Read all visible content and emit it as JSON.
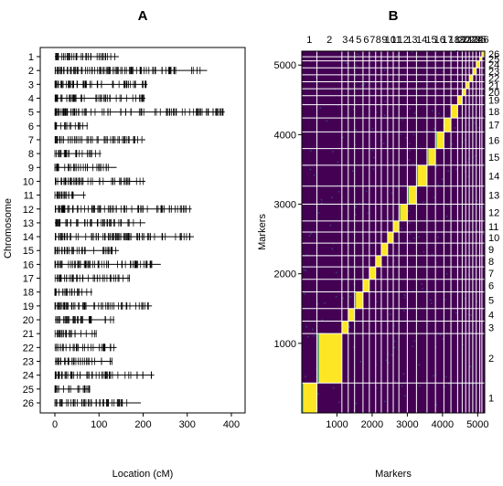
{
  "colors": {
    "heat_low": "#440154",
    "heat_mid": "#21908c",
    "heat_high": "#fde725",
    "grid": "#ffffff"
  },
  "chart_data": [
    {
      "panel": "A",
      "type": "scatter",
      "title": "A",
      "xlabel": "Location (cM)",
      "ylabel": "Chromosome",
      "xlim": [
        0,
        400
      ],
      "x_ticks": [
        0,
        100,
        200,
        300,
        400
      ],
      "chromosomes": [
        {
          "label": "1",
          "length": 145
        },
        {
          "label": "2",
          "length": 345
        },
        {
          "label": "3",
          "length": 210
        },
        {
          "label": "4",
          "length": 205
        },
        {
          "label": "5",
          "length": 385
        },
        {
          "label": "6",
          "length": 75
        },
        {
          "label": "7",
          "length": 205
        },
        {
          "label": "8",
          "length": 105
        },
        {
          "label": "9",
          "length": 140
        },
        {
          "label": "10",
          "length": 205
        },
        {
          "label": "11",
          "length": 70
        },
        {
          "label": "12",
          "length": 310
        },
        {
          "label": "13",
          "length": 205
        },
        {
          "label": "14",
          "length": 315
        },
        {
          "label": "15",
          "length": 145
        },
        {
          "label": "16",
          "length": 240
        },
        {
          "label": "17",
          "length": 170
        },
        {
          "label": "18",
          "length": 85
        },
        {
          "label": "19",
          "length": 220
        },
        {
          "label": "20",
          "length": 135
        },
        {
          "label": "21",
          "length": 95
        },
        {
          "label": "22",
          "length": 140
        },
        {
          "label": "23",
          "length": 130
        },
        {
          "label": "24",
          "length": 225
        },
        {
          "label": "25",
          "length": 80
        },
        {
          "label": "26",
          "length": 195
        }
      ]
    },
    {
      "panel": "B",
      "type": "heatmap",
      "title": "B",
      "xlabel": "Markers",
      "ylabel": "Markers",
      "lim": [
        0,
        5200
      ],
      "x_ticks": [
        1000,
        2000,
        3000,
        4000,
        5000
      ],
      "y_ticks": [
        1000,
        2000,
        3000,
        4000,
        5000
      ],
      "top_labels": [
        "1",
        "2",
        "3",
        "4",
        "5",
        "6",
        "7",
        "8",
        "9",
        "10",
        "11",
        "12",
        "13",
        "14",
        "15",
        "16",
        "17",
        "18",
        "19",
        "20",
        "21",
        "22",
        "23",
        "24",
        "25",
        "26"
      ],
      "right_labels": [
        "1",
        "2",
        "3",
        "4",
        "5",
        "6",
        "7",
        "8",
        "9",
        "10",
        "11",
        "12",
        "13",
        "14",
        "15",
        "16",
        "17",
        "18",
        "19",
        "20",
        "21",
        "22",
        "23",
        "24",
        "25",
        "26"
      ],
      "chromosome_boundaries": [
        0,
        430,
        1140,
        1320,
        1500,
        1740,
        1920,
        2100,
        2260,
        2440,
        2600,
        2760,
        3000,
        3260,
        3560,
        3800,
        4040,
        4240,
        4430,
        4560,
        4660,
        4760,
        4860,
        4960,
        5060,
        5120,
        5200
      ]
    }
  ]
}
